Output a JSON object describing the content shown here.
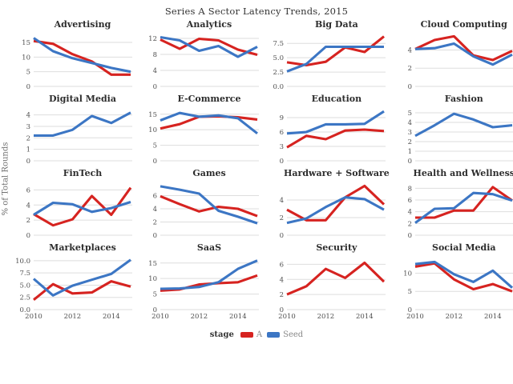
{
  "page": {
    "title": "Series A Sector Latency Trends, 2015",
    "ylabel": "% of Total Rounds"
  },
  "legend": {
    "label": "stage",
    "series": [
      {
        "key": "A",
        "name": "A",
        "color": "#d62320"
      },
      {
        "key": "Seed",
        "name": "Seed",
        "color": "#3c76c4"
      }
    ]
  },
  "chart_data": {
    "type": "line",
    "title": "Series A Sector Latency Trends, 2015",
    "ylabel": "% of Total Rounds",
    "legend_position": "bottom",
    "grid": "horizontal-only",
    "x": [
      2010,
      2011,
      2012,
      2013,
      2014,
      2015
    ],
    "x_ticks": [
      2010,
      2012,
      2014
    ],
    "x_tick_labels": [
      "2010",
      "2012",
      "2014"
    ],
    "series_order": [
      "A",
      "Seed"
    ],
    "colors": {
      "A": "#d62320",
      "Seed": "#3c76c4"
    },
    "facets": [
      {
        "title": "Advertising",
        "ylim": [
          0,
          18
        ],
        "yticks": [
          0,
          5,
          10,
          15
        ],
        "ytick_labels": [
          "0",
          "5",
          "10",
          "15"
        ],
        "series": {
          "A": [
            15.5,
            14.5,
            11.0,
            8.5,
            4.0,
            4.0
          ],
          "Seed": [
            16.5,
            12.0,
            9.6,
            8.0,
            6.3,
            5.0
          ]
        }
      },
      {
        "title": "Analytics",
        "ylim": [
          0,
          13.2
        ],
        "yticks": [
          0,
          4,
          8,
          12
        ],
        "ytick_labels": [
          "0",
          "4",
          "8",
          "12"
        ],
        "series": {
          "A": [
            11.7,
            9.4,
            11.9,
            11.5,
            9.2,
            7.9
          ],
          "Seed": [
            12.3,
            11.5,
            8.9,
            10.1,
            7.4,
            9.9
          ]
        }
      },
      {
        "title": "Big Data",
        "ylim": [
          0,
          9.2
        ],
        "yticks": [
          0,
          2.5,
          5,
          7.5
        ],
        "ytick_labels": [
          "0.0",
          "2.5",
          "5.0",
          "7.5"
        ],
        "series": {
          "A": [
            4.2,
            3.7,
            4.3,
            6.8,
            6.0,
            8.7
          ],
          "Seed": [
            2.6,
            3.9,
            6.9,
            6.9,
            6.9,
            6.9
          ]
        }
      },
      {
        "title": "Cloud Computing",
        "ylim": [
          0,
          5.8
        ],
        "yticks": [
          0,
          2,
          4
        ],
        "ytick_labels": [
          "0",
          "2",
          "4"
        ],
        "series": {
          "A": [
            4.1,
            5.1,
            5.5,
            3.4,
            2.9,
            3.9
          ],
          "Seed": [
            4.1,
            4.2,
            4.7,
            3.3,
            2.4,
            3.5
          ]
        }
      },
      {
        "title": "Digital Media",
        "ylim": [
          0,
          4.6
        ],
        "yticks": [
          0,
          1,
          2,
          3,
          4
        ],
        "ytick_labels": [
          "0",
          "1",
          "2",
          "3",
          "4"
        ],
        "series": {
          "Seed": [
            2.2,
            2.2,
            2.7,
            3.9,
            3.3,
            4.2
          ]
        }
      },
      {
        "title": "E-Commerce",
        "ylim": [
          0,
          17
        ],
        "yticks": [
          0,
          5,
          10,
          15
        ],
        "ytick_labels": [
          "0",
          "5",
          "10",
          "15"
        ],
        "series": {
          "A": [
            10.4,
            11.8,
            14.2,
            14.3,
            14.0,
            13.3
          ],
          "Seed": [
            13.0,
            15.4,
            14.2,
            14.6,
            13.7,
            8.8
          ]
        }
      },
      {
        "title": "Education",
        "ylim": [
          0,
          11
        ],
        "yticks": [
          0,
          3,
          6,
          9
        ],
        "ytick_labels": [
          "0",
          "3",
          "6",
          "9"
        ],
        "series": {
          "A": [
            2.8,
            5.2,
            4.5,
            6.3,
            6.5,
            6.2
          ],
          "Seed": [
            5.7,
            6.0,
            7.6,
            7.6,
            7.7,
            10.3
          ]
        }
      },
      {
        "title": "Fashion",
        "ylim": [
          0,
          5.5
        ],
        "yticks": [
          0,
          1,
          2,
          3,
          4,
          5
        ],
        "ytick_labels": [
          "0",
          "1",
          "2",
          "3",
          "4",
          "5"
        ],
        "series": {
          "Seed": [
            2.6,
            3.7,
            4.9,
            4.3,
            3.5,
            3.7
          ]
        }
      },
      {
        "title": "FinTech",
        "ylim": [
          0,
          7
        ],
        "yticks": [
          0,
          2,
          4,
          6
        ],
        "ytick_labels": [
          "0",
          "2",
          "4",
          "6"
        ],
        "series": {
          "A": [
            2.8,
            1.3,
            2.1,
            5.2,
            2.7,
            6.3
          ],
          "Seed": [
            2.7,
            4.3,
            4.1,
            3.1,
            3.6,
            4.4
          ]
        }
      },
      {
        "title": "Games",
        "ylim": [
          0,
          8
        ],
        "yticks": [
          0,
          2,
          4,
          6
        ],
        "ytick_labels": [
          "0",
          "2",
          "4",
          "6"
        ],
        "series": {
          "A": [
            5.9,
            4.7,
            3.6,
            4.3,
            4.0,
            2.9
          ],
          "Seed": [
            7.4,
            6.9,
            6.3,
            3.7,
            2.8,
            1.8
          ]
        }
      },
      {
        "title": "Hardware + Software",
        "ylim": [
          0,
          6
        ],
        "yticks": [
          0,
          2,
          4
        ],
        "ytick_labels": [
          "0",
          "2",
          "4"
        ],
        "series": {
          "A": [
            2.9,
            1.7,
            1.7,
            4.3,
            5.6,
            3.5
          ],
          "Seed": [
            1.4,
            1.9,
            3.2,
            4.3,
            4.1,
            2.9
          ]
        }
      },
      {
        "title": "Health and Wellness",
        "ylim": [
          0,
          9
        ],
        "yticks": [
          0,
          2,
          4,
          6,
          8
        ],
        "ytick_labels": [
          "0",
          "2",
          "4",
          "6",
          "8"
        ],
        "series": {
          "A": [
            3.0,
            3.0,
            4.2,
            4.2,
            8.2,
            5.9
          ],
          "Seed": [
            2.1,
            4.5,
            4.6,
            7.2,
            7.0,
            5.9
          ]
        }
      },
      {
        "title": "Marketplaces",
        "ylim": [
          0,
          10.8
        ],
        "yticks": [
          0,
          2.5,
          5,
          7.5,
          10
        ],
        "ytick_labels": [
          "0.0",
          "2.5",
          "5.0",
          "7.5",
          "10.0"
        ],
        "series": {
          "A": [
            2.0,
            5.2,
            3.3,
            3.5,
            5.8,
            4.7
          ],
          "Seed": [
            6.3,
            2.9,
            4.9,
            6.1,
            7.3,
            10.2
          ]
        }
      },
      {
        "title": "SaaS",
        "ylim": [
          0,
          17
        ],
        "yticks": [
          0,
          5,
          10,
          15
        ],
        "ytick_labels": [
          "0",
          "5",
          "10",
          "15"
        ],
        "series": {
          "A": [
            6.1,
            6.5,
            8.1,
            8.5,
            8.8,
            11.0
          ],
          "Seed": [
            6.7,
            6.8,
            7.3,
            8.8,
            13.1,
            15.8
          ]
        }
      },
      {
        "title": "Security",
        "ylim": [
          0,
          7
        ],
        "yticks": [
          0,
          2,
          4,
          6
        ],
        "ytick_labels": [
          "0",
          "2",
          "4",
          "6"
        ],
        "series": {
          "A": [
            2.0,
            3.1,
            5.4,
            4.2,
            6.2,
            3.7
          ]
        }
      },
      {
        "title": "Social Media",
        "ylim": [
          0,
          14.5
        ],
        "yticks": [
          0,
          5,
          10
        ],
        "ytick_labels": [
          "0",
          "5",
          "10"
        ],
        "series": {
          "A": [
            11.8,
            12.7,
            8.3,
            5.6,
            7.0,
            5.0
          ],
          "Seed": [
            12.5,
            13.1,
            9.7,
            7.6,
            10.7,
            6.0
          ]
        }
      }
    ]
  }
}
